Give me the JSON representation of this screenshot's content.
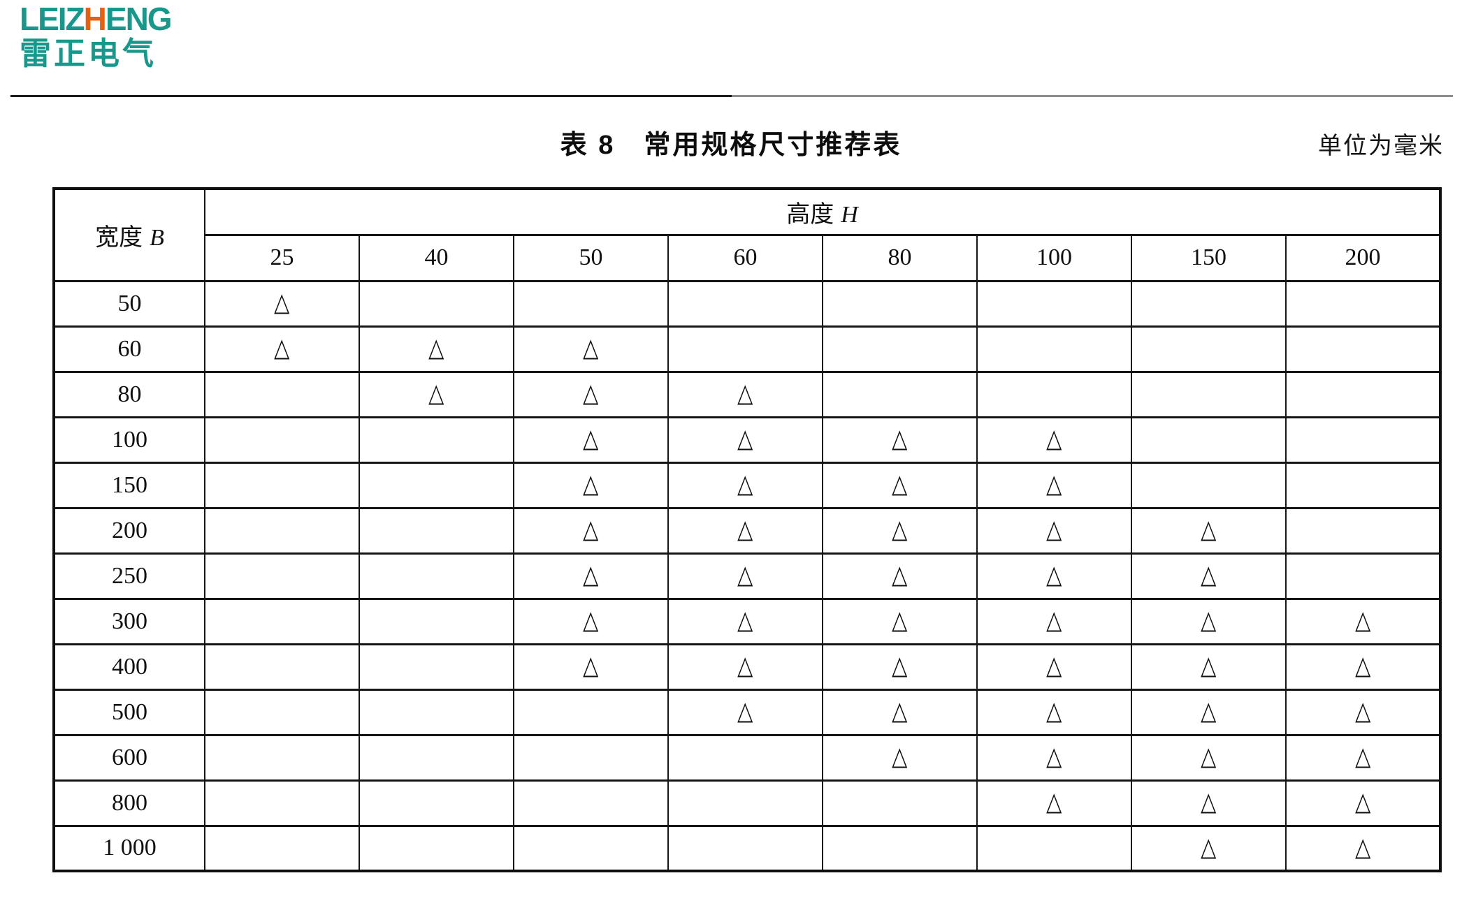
{
  "logo": {
    "wordmark_prefix": "LEIZ",
    "wordmark_h": "H",
    "wordmark_suffix": "ENG",
    "chinese_name": "雷正电气",
    "teal": "#17988b",
    "orange": "#e8600f"
  },
  "title": "表 8　常用规格尺寸推荐表",
  "unit_note": "单位为毫米",
  "table": {
    "corner_header": {
      "label": "宽度",
      "symbol": "B"
    },
    "group_header": {
      "label": "高度",
      "symbol": "H"
    },
    "col_headers": [
      "25",
      "40",
      "50",
      "60",
      "80",
      "100",
      "150",
      "200"
    ],
    "mark_symbol": "△",
    "rows": [
      {
        "label": "50",
        "marks": [
          1,
          0,
          0,
          0,
          0,
          0,
          0,
          0
        ]
      },
      {
        "label": "60",
        "marks": [
          1,
          1,
          1,
          0,
          0,
          0,
          0,
          0
        ]
      },
      {
        "label": "80",
        "marks": [
          0,
          1,
          1,
          1,
          0,
          0,
          0,
          0
        ]
      },
      {
        "label": "100",
        "marks": [
          0,
          0,
          1,
          1,
          1,
          1,
          0,
          0
        ]
      },
      {
        "label": "150",
        "marks": [
          0,
          0,
          1,
          1,
          1,
          1,
          0,
          0
        ]
      },
      {
        "label": "200",
        "marks": [
          0,
          0,
          1,
          1,
          1,
          1,
          1,
          0
        ]
      },
      {
        "label": "250",
        "marks": [
          0,
          0,
          1,
          1,
          1,
          1,
          1,
          0
        ]
      },
      {
        "label": "300",
        "marks": [
          0,
          0,
          1,
          1,
          1,
          1,
          1,
          1
        ]
      },
      {
        "label": "400",
        "marks": [
          0,
          0,
          1,
          1,
          1,
          1,
          1,
          1
        ]
      },
      {
        "label": "500",
        "marks": [
          0,
          0,
          0,
          1,
          1,
          1,
          1,
          1
        ]
      },
      {
        "label": "600",
        "marks": [
          0,
          0,
          0,
          0,
          1,
          1,
          1,
          1
        ]
      },
      {
        "label": "800",
        "marks": [
          0,
          0,
          0,
          0,
          0,
          1,
          1,
          1
        ]
      },
      {
        "label": "1 000",
        "marks": [
          0,
          0,
          0,
          0,
          0,
          0,
          1,
          1
        ]
      }
    ]
  }
}
